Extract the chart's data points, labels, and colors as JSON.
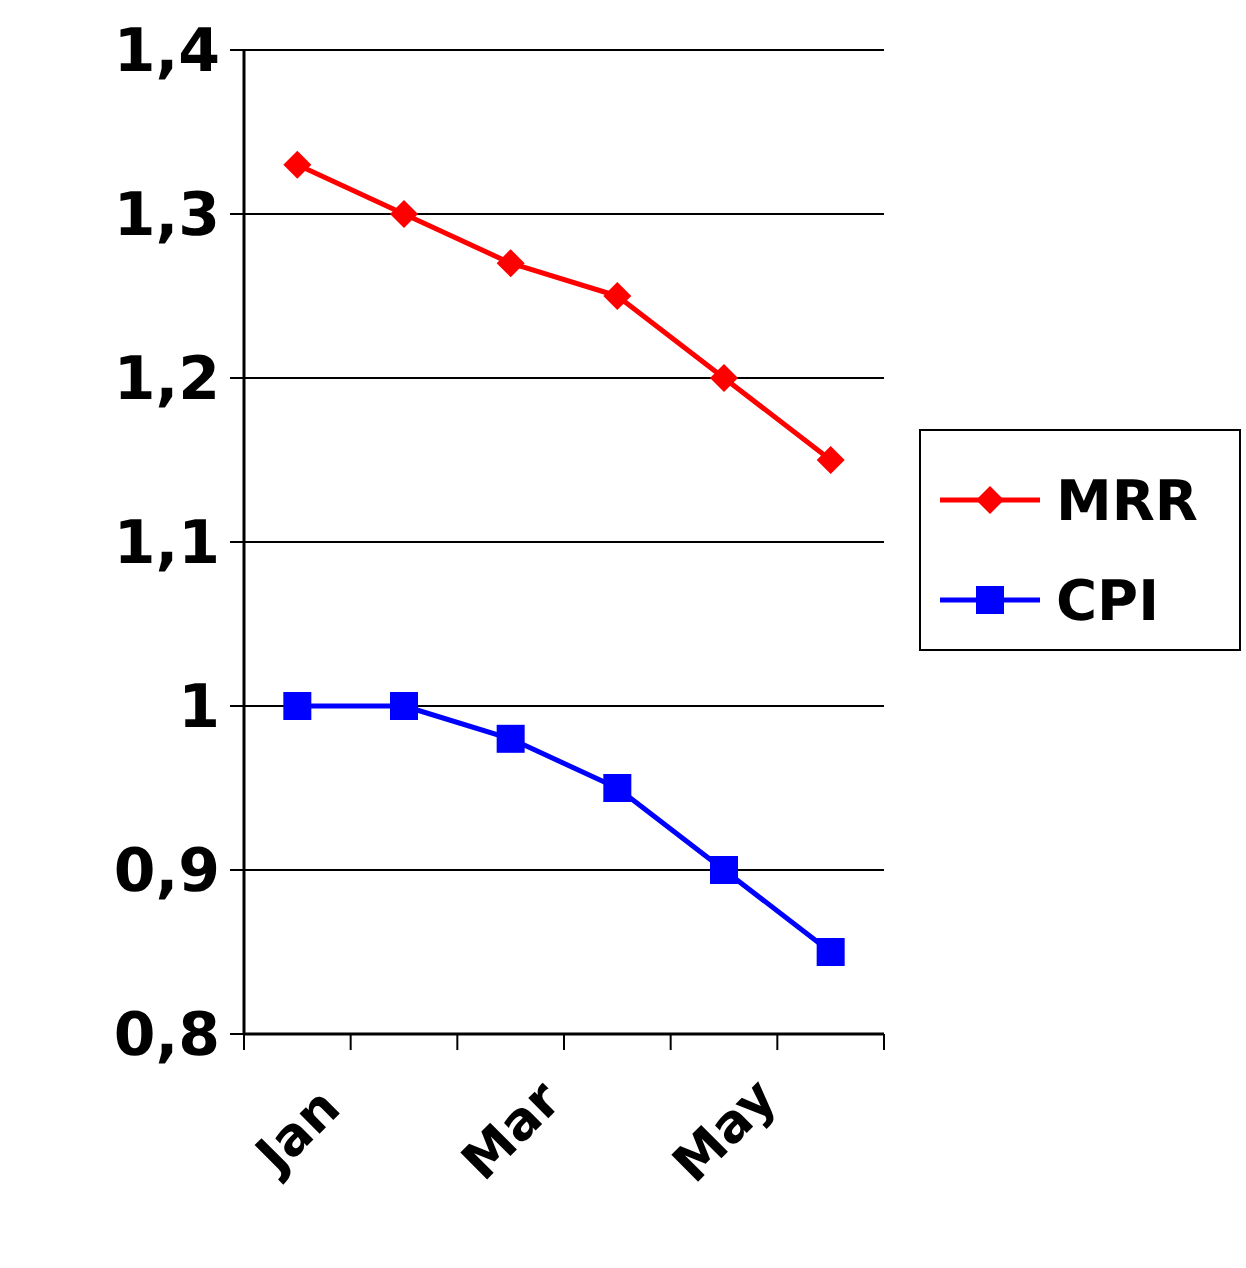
{
  "chart_data": {
    "type": "line",
    "categories": [
      "Jan",
      null,
      "Mar",
      null,
      "May",
      null
    ],
    "series": [
      {
        "name": "MRR",
        "color": "#ff0000",
        "marker": "diamond",
        "values": [
          1.33,
          1.3,
          1.27,
          1.25,
          1.2,
          1.15
        ]
      },
      {
        "name": "CPI",
        "color": "#0000ff",
        "marker": "square",
        "values": [
          1.0,
          1.0,
          0.98,
          0.95,
          0.9,
          0.85
        ]
      }
    ],
    "ylim": [
      0.8,
      1.4
    ],
    "yticks": [
      {
        "value": 0.8,
        "label": "0,8"
      },
      {
        "value": 0.9,
        "label": "0,9"
      },
      1,
      {
        "value": 1.1,
        "label": "1,1"
      },
      {
        "value": 1.2,
        "label": "1,2"
      },
      {
        "value": 1.3,
        "label": "1,3"
      },
      {
        "value": 1.4,
        "label": "1,4"
      }
    ],
    "grid": "y",
    "legend": "right"
  }
}
